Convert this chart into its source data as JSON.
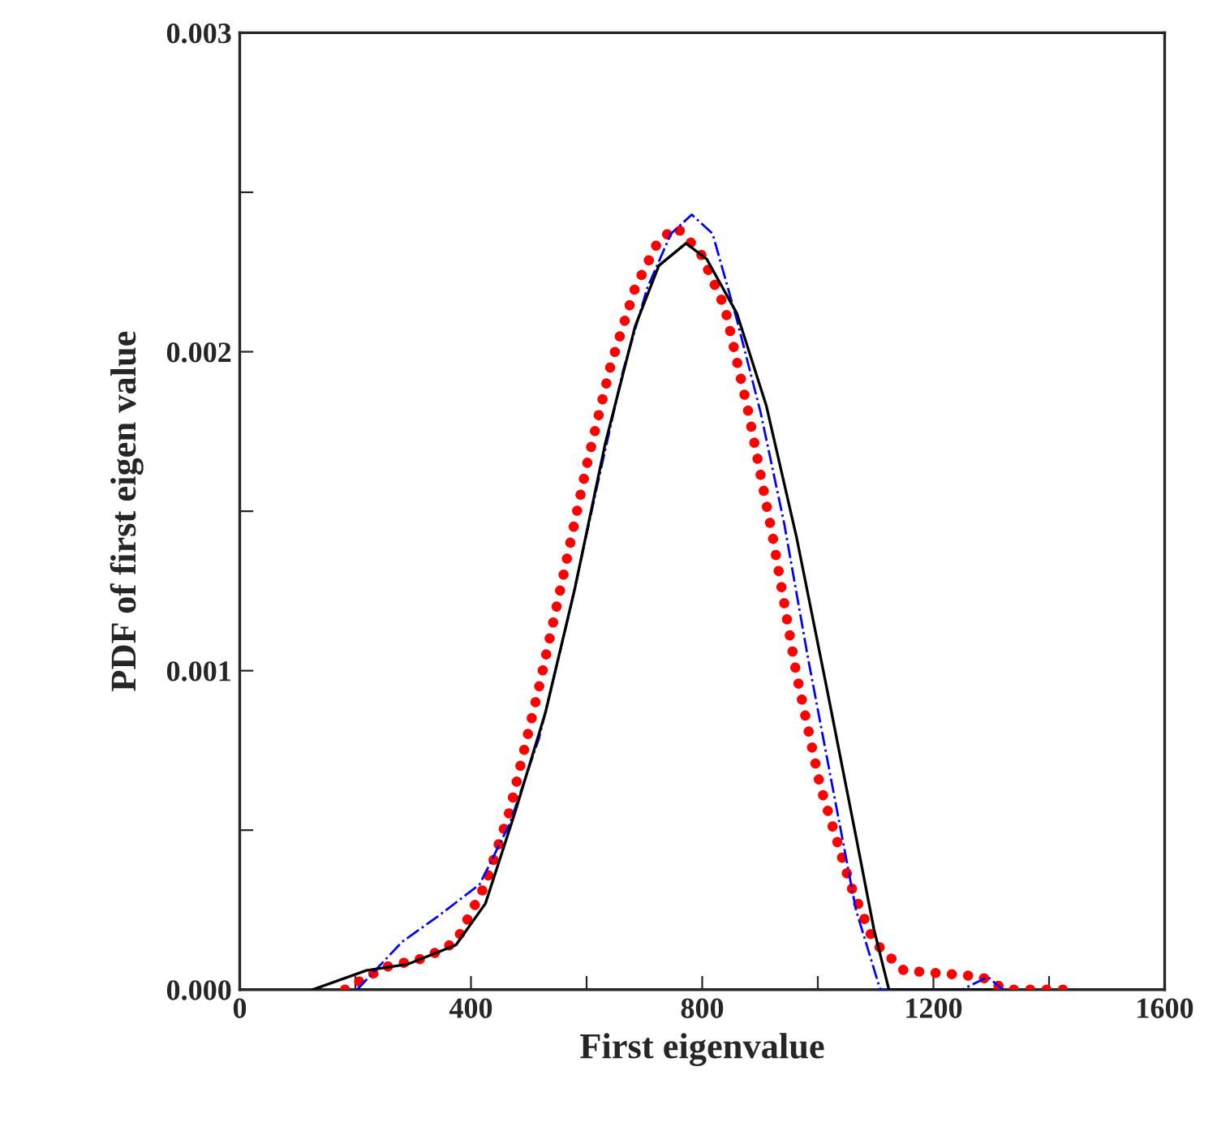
{
  "chart_data": {
    "type": "line",
    "xlabel": "First eigenvalue",
    "ylabel": "PDF of first eigen value",
    "xlim": [
      0,
      1600
    ],
    "ylim": [
      0,
      0.003
    ],
    "xticks": [
      0,
      {
        "value": 200,
        "label": null
      },
      400,
      {
        "value": 600,
        "label": null
      },
      800,
      {
        "value": 1000,
        "label": null
      },
      1200,
      {
        "value": 1400,
        "label": null
      },
      1600
    ],
    "yticks": [
      {
        "value": 0,
        "label": "0.000"
      },
      {
        "value": 0.0005,
        "label": null
      },
      0.001,
      {
        "value": 0.0015,
        "label": null
      },
      0.002,
      {
        "value": 0.0025,
        "label": null
      },
      0.003
    ],
    "grid": false,
    "legend": false,
    "series": [
      {
        "color": "#ff0000",
        "line_style": "dotted",
        "x": [
          182,
          250,
          322,
          374,
          425,
          467,
          518,
          560,
          601,
          642,
          684,
          725,
          756,
          797,
          839,
          880,
          922,
          963,
          1004,
          1056,
          1097,
          1149,
          1221,
          1283,
          1325,
          1440
        ],
        "values": [
          0,
          7e-05,
          0.0001,
          0.00015,
          0.00033,
          0.00056,
          0.00095,
          0.0013,
          0.00165,
          0.00196,
          0.0022,
          0.00235,
          0.00239,
          0.00231,
          0.00214,
          0.00181,
          0.00142,
          0.00099,
          0.00064,
          0.00033,
          0.00015,
          6e-05,
          5e-05,
          4e-05,
          0,
          0
        ]
      },
      {
        "color": "#0000ff",
        "line_style": "dashdot",
        "x": [
          203,
          281,
          343,
          415,
          467,
          518,
          570,
          622,
          663,
          705,
          746,
          782,
          818,
          860,
          901,
          942,
          984,
          1025,
          1066,
          1108,
          1250,
          1294,
          1320
        ],
        "values": [
          0,
          0.00015,
          0.00023,
          0.00033,
          0.00052,
          0.00079,
          0.00118,
          0.00161,
          0.00194,
          0.0022,
          0.00237,
          0.00243,
          0.00237,
          0.0021,
          0.00181,
          0.00146,
          0.00103,
          0.00064,
          0.00025,
          0,
          0,
          4e-05,
          0
        ]
      },
      {
        "color": "#000000",
        "line_style": "solid",
        "x": [
          126,
          219,
          291,
          374,
          425,
          477,
          529,
          580,
          632,
          684,
          725,
          772,
          808,
          860,
          911,
          963,
          1015,
          1066,
          1097,
          1123,
          1300
        ],
        "values": [
          0,
          6e-05,
          8e-05,
          0.00014,
          0.00027,
          0.00056,
          0.00087,
          0.00126,
          0.00171,
          0.00208,
          0.00227,
          0.00234,
          0.00229,
          0.00212,
          0.00183,
          0.00142,
          0.00095,
          0.00048,
          0.00019,
          0,
          0
        ]
      }
    ]
  }
}
